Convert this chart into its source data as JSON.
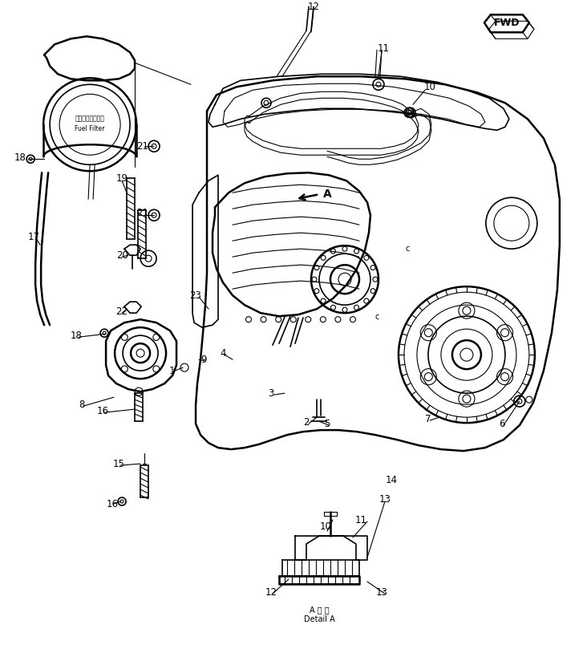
{
  "background_color": "#ffffff",
  "line_color": "#000000",
  "fig_width": 7.27,
  "fig_height": 8.09,
  "dpi": 100,
  "labels": [
    [
      391,
      8,
      "12"
    ],
    [
      478,
      60,
      "11"
    ],
    [
      536,
      108,
      "10"
    ],
    [
      25,
      196,
      "18"
    ],
    [
      178,
      182,
      "21"
    ],
    [
      152,
      222,
      "19"
    ],
    [
      178,
      265,
      "21"
    ],
    [
      152,
      318,
      "20"
    ],
    [
      152,
      388,
      "22"
    ],
    [
      244,
      368,
      "23"
    ],
    [
      95,
      418,
      "18"
    ],
    [
      102,
      504,
      "8"
    ],
    [
      128,
      512,
      "16"
    ],
    [
      148,
      578,
      "15"
    ],
    [
      140,
      628,
      "16"
    ],
    [
      42,
      295,
      "17"
    ],
    [
      214,
      462,
      "1"
    ],
    [
      382,
      526,
      "2"
    ],
    [
      338,
      490,
      "3"
    ],
    [
      278,
      440,
      "4"
    ],
    [
      408,
      528,
      "5"
    ],
    [
      626,
      528,
      "6"
    ],
    [
      534,
      522,
      "7"
    ],
    [
      254,
      448,
      "9"
    ],
    [
      488,
      598,
      "14"
    ],
    [
      480,
      622,
      "13"
    ],
    [
      406,
      656,
      "10"
    ],
    [
      450,
      648,
      "11"
    ],
    [
      338,
      738,
      "12"
    ],
    [
      476,
      738,
      "13"
    ]
  ]
}
